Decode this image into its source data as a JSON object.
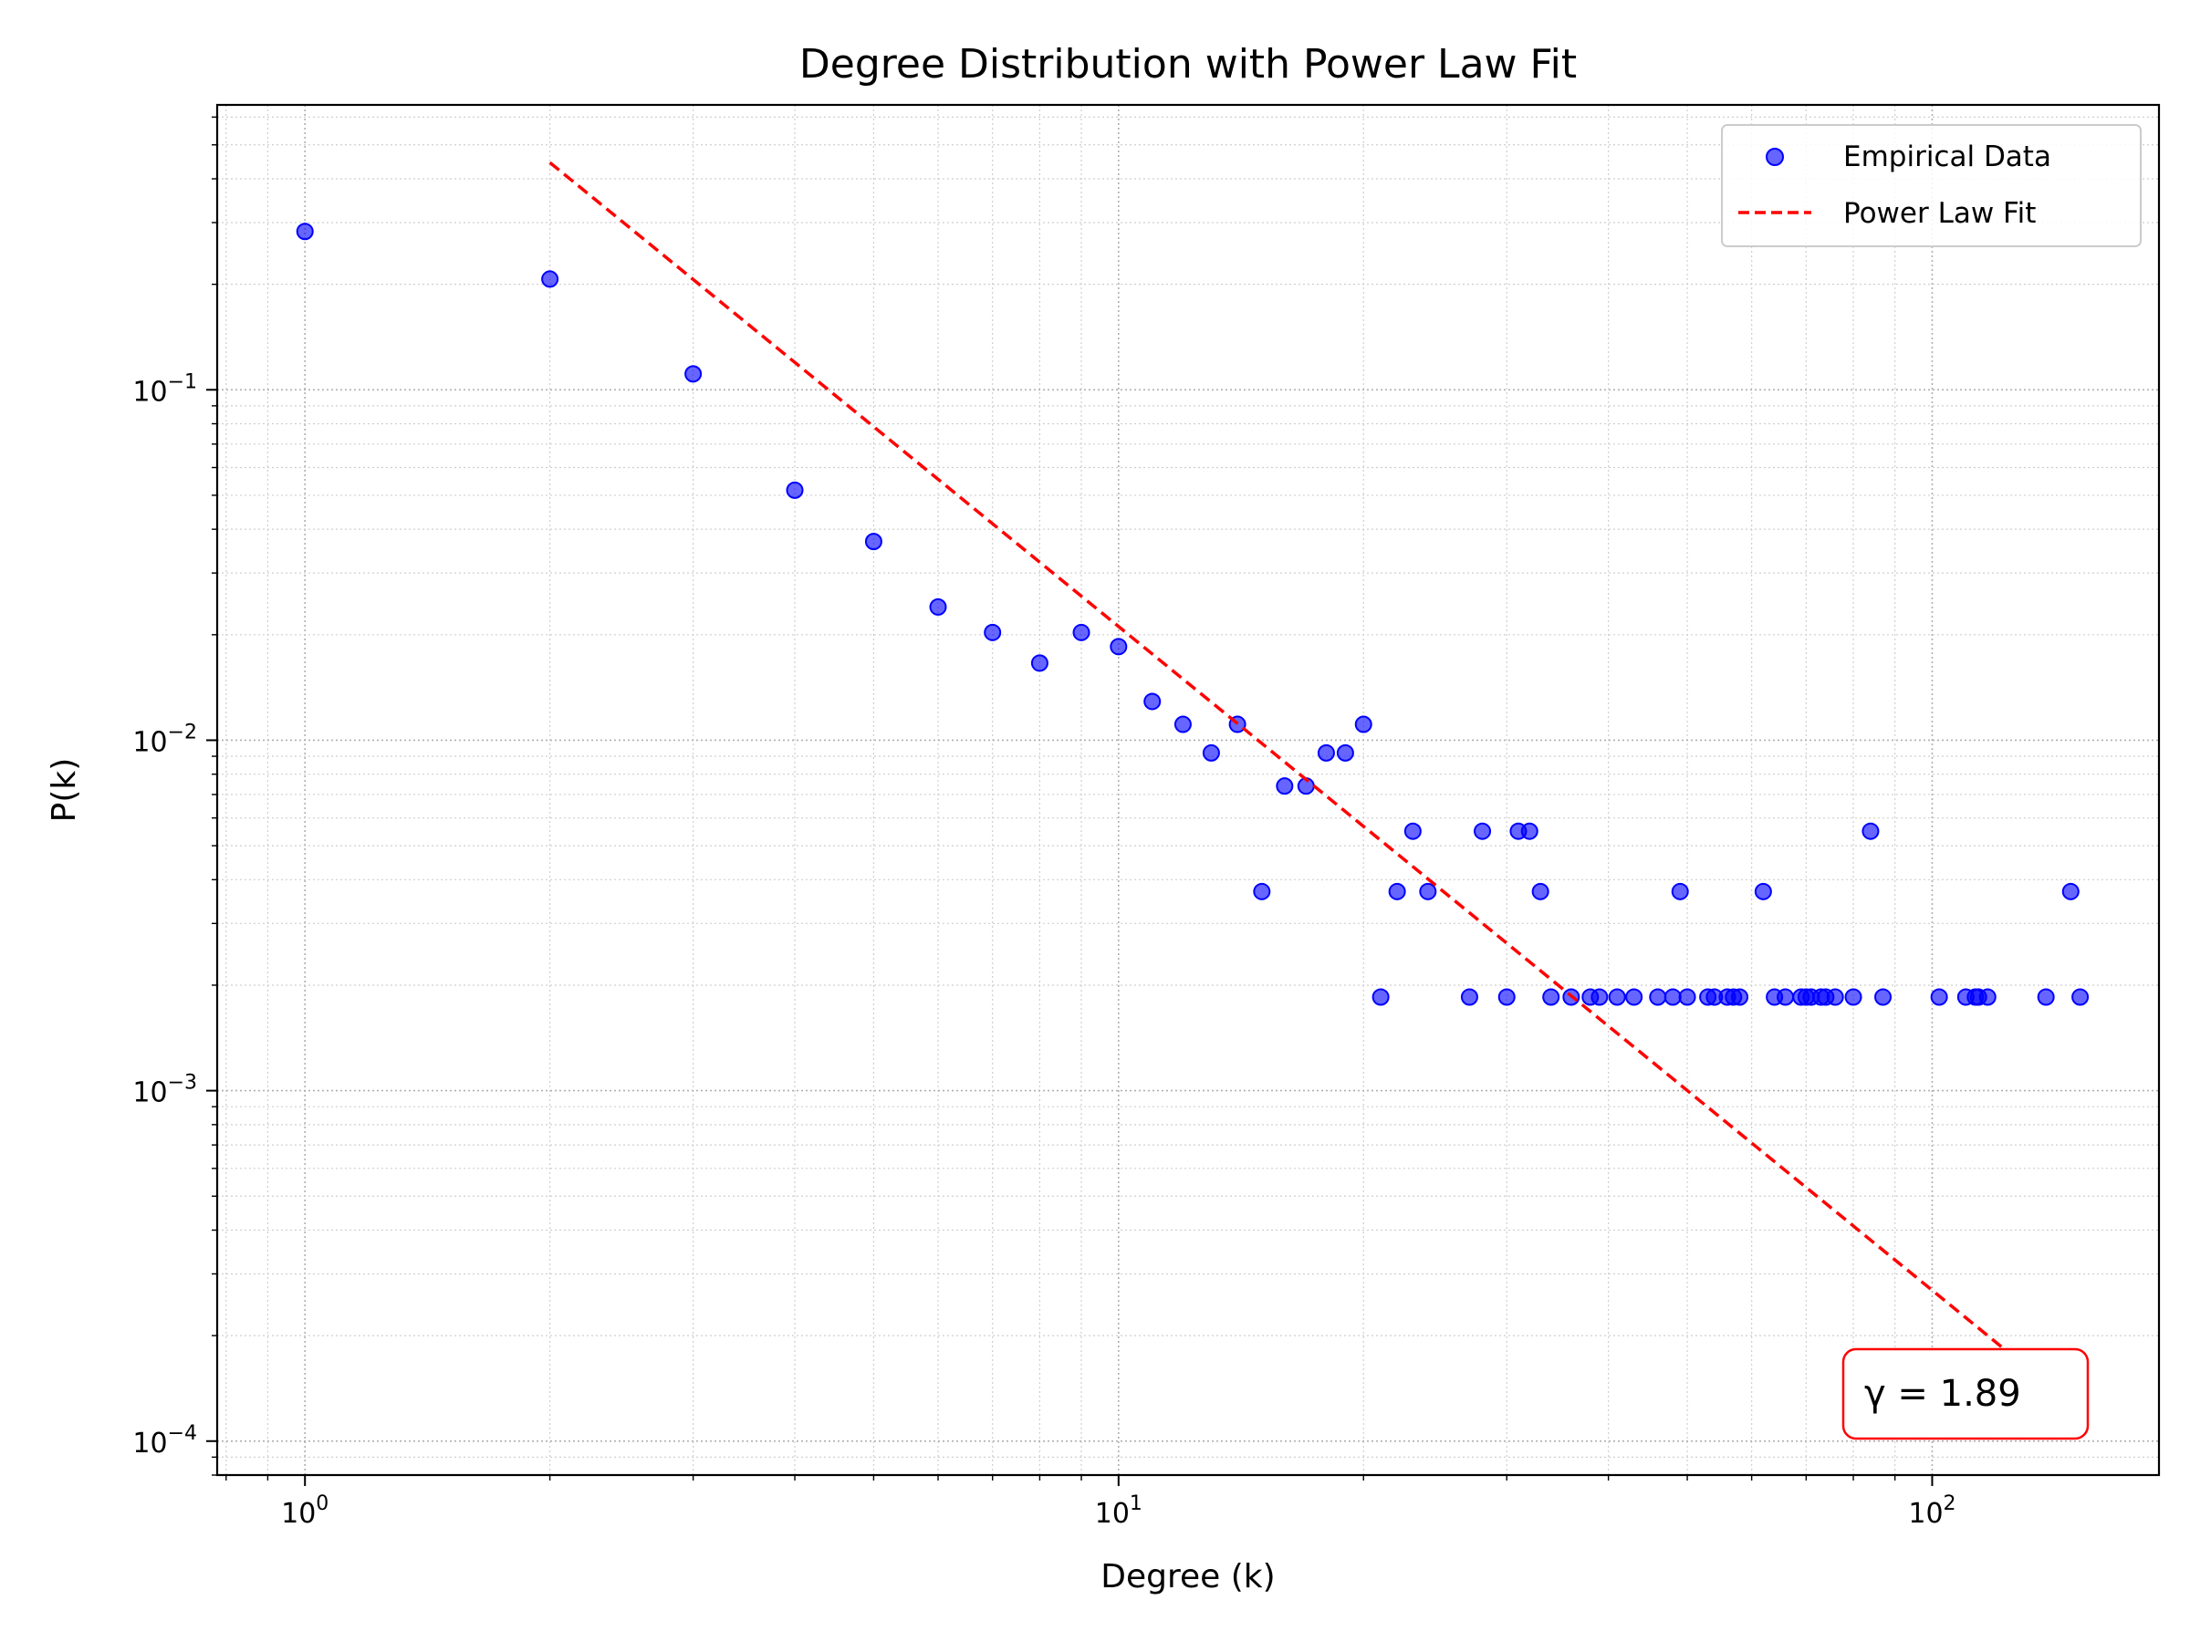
{
  "chart_data": {
    "type": "scatter",
    "title": "Degree Distribution with Power Law Fit",
    "xlabel": "Degree (k)",
    "ylabel": "P(k)",
    "xscale": "log",
    "yscale": "log",
    "xlim": [
      0.78,
      190
    ],
    "ylim": [
      8e-05,
      0.65
    ],
    "grid": true,
    "legend_position": "top-right",
    "x_ticks": [
      {
        "value": 1,
        "base": "10",
        "exp": "0"
      },
      {
        "value": 10,
        "base": "10",
        "exp": "1"
      },
      {
        "value": 100,
        "base": "10",
        "exp": "2"
      }
    ],
    "y_ticks": [
      {
        "value": 0.1,
        "base": "10",
        "exp": "−1"
      },
      {
        "value": 0.01,
        "base": "10",
        "exp": "−2"
      },
      {
        "value": 0.001,
        "base": "10",
        "exp": "−3"
      },
      {
        "value": 0.0001,
        "base": "10",
        "exp": "−4"
      }
    ],
    "series": [
      {
        "name": "Empirical Data",
        "kind": "scatter",
        "color": "#0000ff",
        "points": [
          [
            1,
            0.283
          ],
          [
            2,
            0.207
          ],
          [
            3,
            0.111
          ],
          [
            4,
            0.0517
          ],
          [
            5,
            0.0369
          ],
          [
            6,
            0.024
          ],
          [
            7,
            0.0203
          ],
          [
            8,
            0.0166
          ],
          [
            9,
            0.0203
          ],
          [
            10,
            0.0185
          ],
          [
            11,
            0.0129
          ],
          [
            12,
            0.0111
          ],
          [
            13,
            0.0092
          ],
          [
            14,
            0.0111
          ],
          [
            15,
            0.0037
          ],
          [
            16,
            0.0074
          ],
          [
            17,
            0.0074
          ],
          [
            18,
            0.0092
          ],
          [
            19,
            0.0092
          ],
          [
            20,
            0.0111
          ],
          [
            21,
            0.00185
          ],
          [
            22,
            0.0037
          ],
          [
            23,
            0.0055
          ],
          [
            24,
            0.0037
          ],
          [
            27,
            0.00185
          ],
          [
            28,
            0.0055
          ],
          [
            30,
            0.00185
          ],
          [
            31,
            0.0055
          ],
          [
            32,
            0.0055
          ],
          [
            33,
            0.0037
          ],
          [
            34,
            0.00185
          ],
          [
            36,
            0.00185
          ],
          [
            38,
            0.00185
          ],
          [
            39,
            0.00185
          ],
          [
            41,
            0.00185
          ],
          [
            43,
            0.00185
          ],
          [
            46,
            0.00185
          ],
          [
            48,
            0.00185
          ],
          [
            49,
            0.0037
          ],
          [
            50,
            0.00185
          ],
          [
            53,
            0.00185
          ],
          [
            54,
            0.00185
          ],
          [
            56,
            0.00185
          ],
          [
            57,
            0.00185
          ],
          [
            58,
            0.00185
          ],
          [
            62,
            0.0037
          ],
          [
            64,
            0.00185
          ],
          [
            66,
            0.00185
          ],
          [
            69,
            0.00185
          ],
          [
            70,
            0.00185
          ],
          [
            71,
            0.00185
          ],
          [
            73,
            0.00185
          ],
          [
            74,
            0.00185
          ],
          [
            76,
            0.00185
          ],
          [
            80,
            0.00185
          ],
          [
            84,
            0.0055
          ],
          [
            87,
            0.00185
          ],
          [
            102,
            0.00185
          ],
          [
            110,
            0.00185
          ],
          [
            113,
            0.00185
          ],
          [
            114,
            0.00185
          ],
          [
            117,
            0.00185
          ],
          [
            138,
            0.00185
          ],
          [
            148,
            0.0037
          ],
          [
            152,
            0.00185
          ]
        ]
      },
      {
        "name": "Power Law Fit",
        "kind": "line",
        "style": "dashed",
        "color": "#ff0000",
        "x": [
          2,
          123
        ],
        "y": [
          0.445,
          0.000182
        ]
      }
    ],
    "annotation": {
      "text": "γ = 1.89",
      "border_color": "#ff0000",
      "position": "bottom-right"
    }
  }
}
